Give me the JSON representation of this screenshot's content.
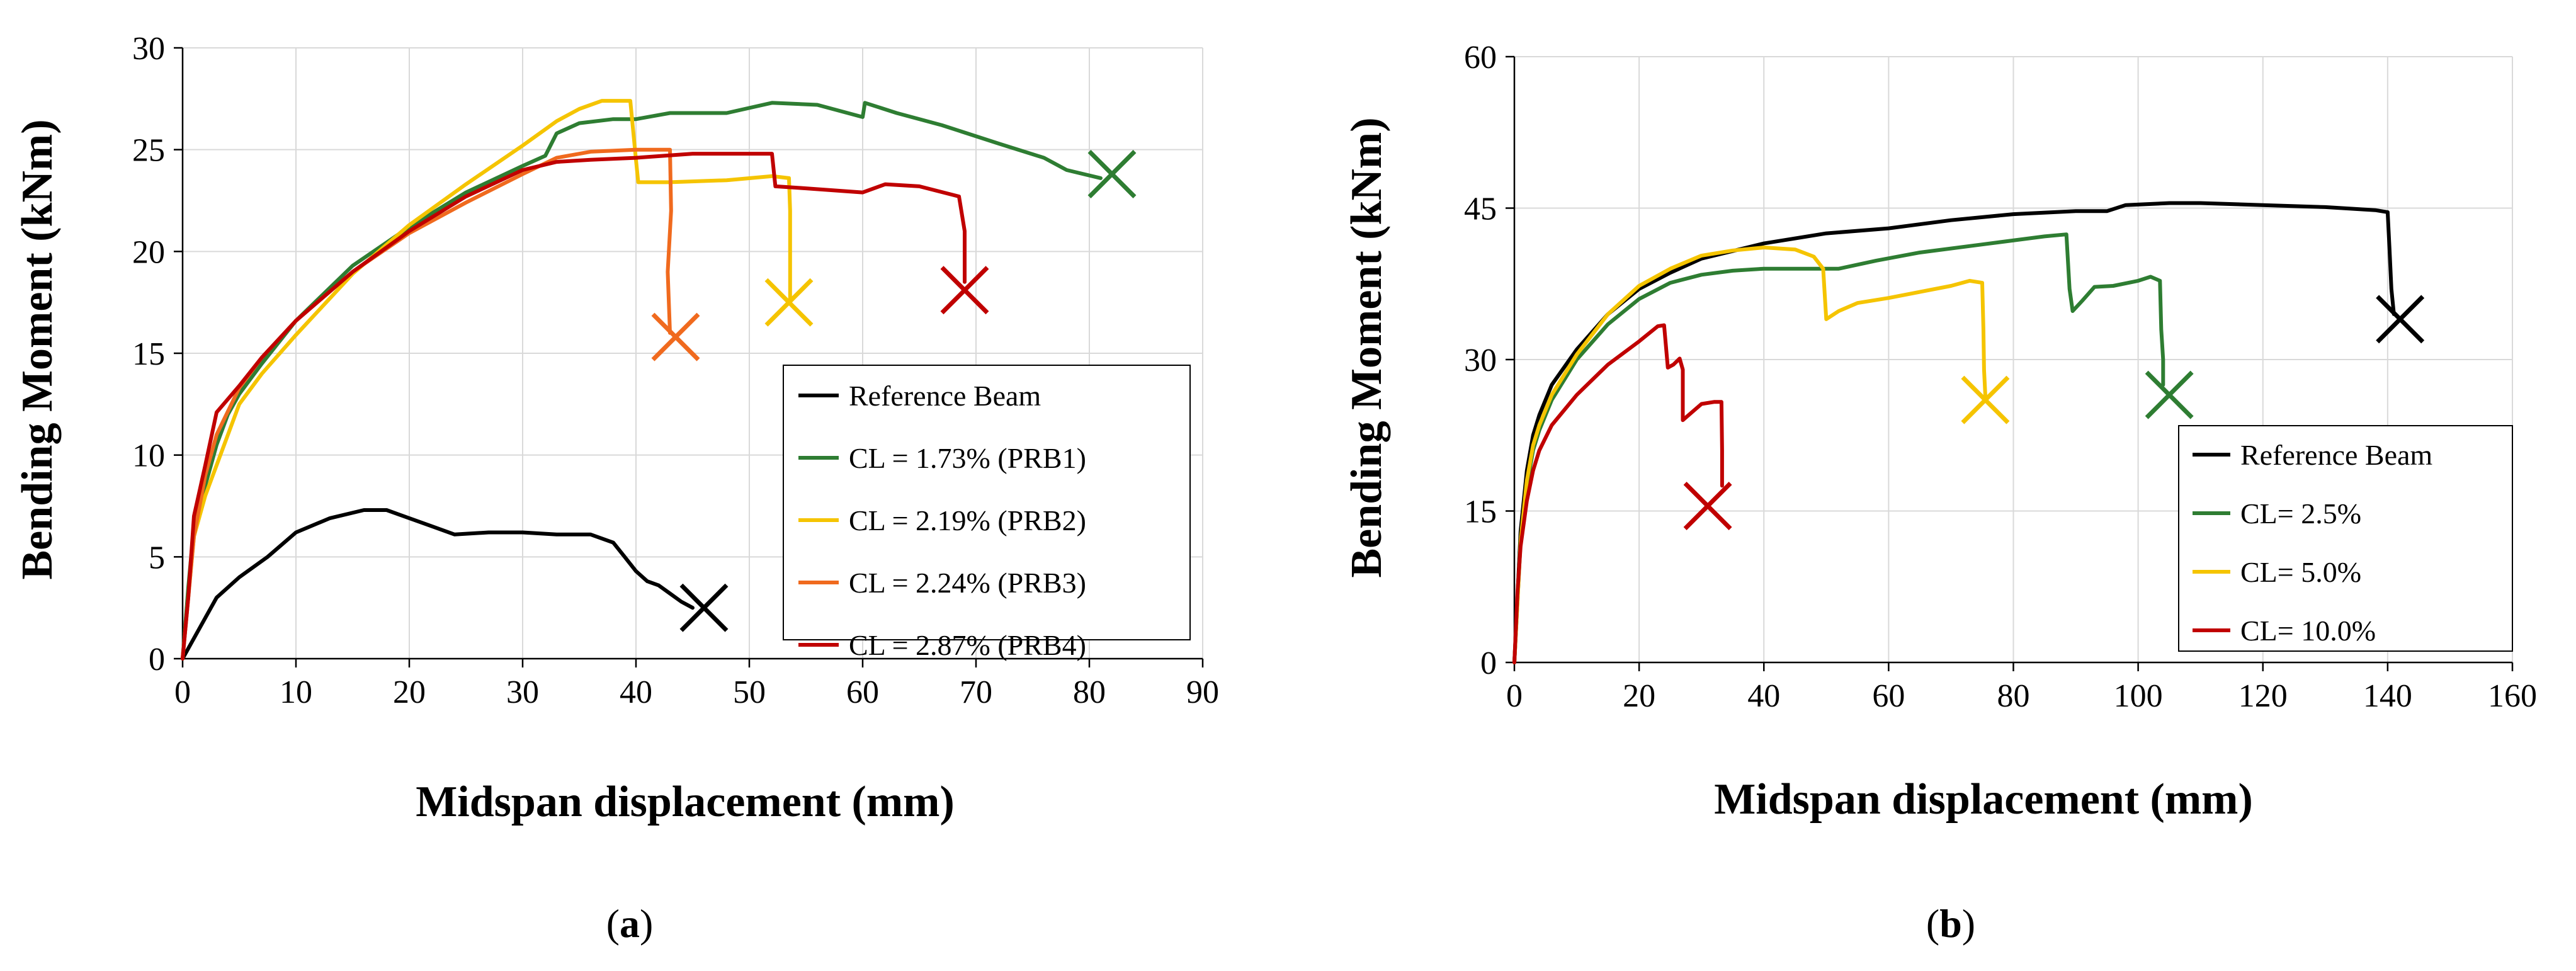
{
  "chart_data": [
    {
      "type": "line",
      "panel_caption": "(a)",
      "caption_open": "(",
      "caption_letter": "a",
      "caption_close": ")",
      "xlabel": "Midspan displacement (mm)",
      "ylabel": "Bending Moment (kNm)",
      "xlim": [
        0,
        90
      ],
      "ylim": [
        0,
        30
      ],
      "xticks": [
        0,
        10,
        20,
        30,
        40,
        50,
        60,
        70,
        80,
        90
      ],
      "yticks": [
        0,
        5,
        10,
        15,
        20,
        25,
        30
      ],
      "grid": true,
      "legend_position": "bottom-right",
      "series": [
        {
          "name": "Reference Beam",
          "color": "#000000",
          "points": [
            [
              0,
              0
            ],
            [
              2,
              2
            ],
            [
              3,
              3
            ],
            [
              5,
              4
            ],
            [
              7.5,
              5
            ],
            [
              10,
              6.2
            ],
            [
              13,
              6.9
            ],
            [
              16,
              7.3
            ],
            [
              18,
              7.3
            ],
            [
              20,
              6.9
            ],
            [
              22,
              6.5
            ],
            [
              24,
              6.1
            ],
            [
              27,
              6.2
            ],
            [
              30,
              6.2
            ],
            [
              33,
              6.1
            ],
            [
              36,
              6.1
            ],
            [
              38,
              5.7
            ],
            [
              39,
              5
            ],
            [
              40,
              4.3
            ],
            [
              41,
              3.8
            ],
            [
              42,
              3.6
            ],
            [
              43,
              3.2
            ],
            [
              44,
              2.8
            ],
            [
              45,
              2.5
            ]
          ],
          "failure_marker": [
            46,
            2.5
          ]
        },
        {
          "name": "CL = 1.73% (PRB1)",
          "color": "#2e7d32",
          "points": [
            [
              0,
              0
            ],
            [
              0.5,
              3.5
            ],
            [
              1,
              6.5
            ],
            [
              2,
              8.5
            ],
            [
              3,
              10.5
            ],
            [
              4,
              12
            ],
            [
              5,
              13
            ],
            [
              7,
              14.5
            ],
            [
              10,
              16.6
            ],
            [
              15,
              19.3
            ],
            [
              20,
              21.2
            ],
            [
              25,
              22.9
            ],
            [
              30,
              24.2
            ],
            [
              32,
              24.7
            ],
            [
              33,
              25.8
            ],
            [
              35,
              26.3
            ],
            [
              38,
              26.5
            ],
            [
              40,
              26.5
            ],
            [
              43,
              26.8
            ],
            [
              48,
              26.8
            ],
            [
              52,
              27.3
            ],
            [
              56,
              27.2
            ],
            [
              60,
              26.6
            ],
            [
              60.2,
              27.3
            ],
            [
              63,
              26.8
            ],
            [
              67,
              26.2
            ],
            [
              72,
              25.3
            ],
            [
              76,
              24.6
            ],
            [
              78,
              24
            ],
            [
              81,
              23.6
            ]
          ],
          "failure_marker": [
            82,
            23.8
          ]
        },
        {
          "name": "CL = 2.19% (PRB2)",
          "color": "#f5c400",
          "points": [
            [
              0,
              0
            ],
            [
              0.5,
              3
            ],
            [
              1,
              6
            ],
            [
              2,
              8
            ],
            [
              3,
              9.5
            ],
            [
              5,
              12.5
            ],
            [
              7,
              14
            ],
            [
              10,
              15.9
            ],
            [
              15,
              18.9
            ],
            [
              20,
              21.3
            ],
            [
              25,
              23.3
            ],
            [
              30,
              25.2
            ],
            [
              33,
              26.4
            ],
            [
              35,
              27
            ],
            [
              37,
              27.4
            ],
            [
              39.5,
              27.4
            ],
            [
              40,
              24.5
            ],
            [
              40.2,
              23.4
            ],
            [
              43,
              23.4
            ],
            [
              48,
              23.5
            ],
            [
              52,
              23.7
            ],
            [
              53.5,
              23.6
            ],
            [
              53.6,
              22
            ],
            [
              53.6,
              17.5
            ]
          ],
          "failure_marker": [
            53.5,
            17.5
          ]
        },
        {
          "name": "CL = 2.24% (PRB3)",
          "color": "#f06a1e",
          "points": [
            [
              0,
              0
            ],
            [
              0.5,
              3
            ],
            [
              1,
              6
            ],
            [
              2,
              9
            ],
            [
              3,
              11
            ],
            [
              5,
              13.3
            ],
            [
              7,
              14.8
            ],
            [
              10,
              16.6
            ],
            [
              15,
              19
            ],
            [
              20,
              20.9
            ],
            [
              25,
              22.4
            ],
            [
              30,
              23.8
            ],
            [
              33,
              24.6
            ],
            [
              36,
              24.9
            ],
            [
              40,
              25
            ],
            [
              43,
              25
            ],
            [
              43.1,
              22
            ],
            [
              42.8,
              19
            ],
            [
              43,
              16
            ]
          ],
          "failure_marker": [
            43.5,
            15.8
          ]
        },
        {
          "name": "CL = 2.87% (PRB4)",
          "color": "#c00000",
          "points": [
            [
              0,
              0
            ],
            [
              0.5,
              3
            ],
            [
              1,
              7
            ],
            [
              2,
              9.5
            ],
            [
              3,
              12.1
            ],
            [
              5,
              13.4
            ],
            [
              7,
              14.8
            ],
            [
              10,
              16.6
            ],
            [
              15,
              19
            ],
            [
              20,
              21
            ],
            [
              25,
              22.7
            ],
            [
              30,
              24
            ],
            [
              33,
              24.4
            ],
            [
              36,
              24.5
            ],
            [
              40,
              24.6
            ],
            [
              45,
              24.8
            ],
            [
              48,
              24.8
            ],
            [
              52,
              24.8
            ],
            [
              52.3,
              23.2
            ],
            [
              55,
              23.1
            ],
            [
              60,
              22.9
            ],
            [
              62,
              23.3
            ],
            [
              65,
              23.2
            ],
            [
              68.5,
              22.7
            ],
            [
              69,
              21
            ],
            [
              69,
              18.5
            ]
          ],
          "failure_marker": [
            69,
            18.1
          ]
        }
      ]
    },
    {
      "type": "line",
      "panel_caption": "(b)",
      "caption_open": "(",
      "caption_letter": "b",
      "caption_close": ")",
      "xlabel": "Midspan displacement (mm)",
      "ylabel": "Bending Moment (kNm)",
      "xlim": [
        0,
        160
      ],
      "ylim": [
        0,
        60
      ],
      "xticks": [
        0,
        20,
        40,
        60,
        80,
        100,
        120,
        140,
        160
      ],
      "yticks": [
        0,
        15,
        30,
        45,
        60
      ],
      "grid": true,
      "legend_position": "bottom-right",
      "series": [
        {
          "name": "Reference Beam",
          "color": "#000000",
          "points": [
            [
              0,
              0
            ],
            [
              1,
              13
            ],
            [
              2,
              19
            ],
            [
              3,
              22.5
            ],
            [
              4,
              24.5
            ],
            [
              6,
              27.5
            ],
            [
              10,
              31
            ],
            [
              15,
              34.5
            ],
            [
              20,
              37
            ],
            [
              25,
              38.6
            ],
            [
              30,
              40
            ],
            [
              40,
              41.5
            ],
            [
              50,
              42.5
            ],
            [
              60,
              43
            ],
            [
              70,
              43.8
            ],
            [
              80,
              44.4
            ],
            [
              90,
              44.7
            ],
            [
              95,
              44.7
            ],
            [
              98,
              45.3
            ],
            [
              105,
              45.5
            ],
            [
              110,
              45.5
            ],
            [
              120,
              45.3
            ],
            [
              130,
              45.1
            ],
            [
              138,
              44.8
            ],
            [
              140,
              44.6
            ],
            [
              140.3,
              41
            ],
            [
              140.6,
              37
            ],
            [
              141,
              34.5
            ]
          ],
          "failure_marker": [
            142,
            34
          ]
        },
        {
          "name": "CL= 2.5%",
          "color": "#2e7d32",
          "points": [
            [
              0,
              0
            ],
            [
              1,
              12
            ],
            [
              2,
              17.5
            ],
            [
              3,
              21
            ],
            [
              4,
              23
            ],
            [
              6,
              26
            ],
            [
              10,
              30
            ],
            [
              15,
              33.5
            ],
            [
              20,
              36
            ],
            [
              25,
              37.6
            ],
            [
              30,
              38.4
            ],
            [
              35,
              38.8
            ],
            [
              40,
              39
            ],
            [
              45,
              39
            ],
            [
              52,
              39
            ],
            [
              58,
              39.8
            ],
            [
              65,
              40.6
            ],
            [
              75,
              41.4
            ],
            [
              85,
              42.2
            ],
            [
              88.5,
              42.4
            ],
            [
              89,
              37
            ],
            [
              89.5,
              34.8
            ],
            [
              91,
              35.8
            ],
            [
              93,
              37.2
            ],
            [
              96,
              37.3
            ],
            [
              100,
              37.8
            ],
            [
              102,
              38.2
            ],
            [
              103.5,
              37.8
            ],
            [
              103.7,
              33
            ],
            [
              104,
              30
            ],
            [
              104,
              27.5
            ]
          ],
          "failure_marker": [
            105,
            26.5
          ]
        },
        {
          "name": "CL= 5.0%",
          "color": "#f5c400",
          "points": [
            [
              0,
              0
            ],
            [
              1,
              12
            ],
            [
              2,
              18
            ],
            [
              3,
              21.5
            ],
            [
              4,
              23.5
            ],
            [
              6,
              26.5
            ],
            [
              10,
              30.5
            ],
            [
              15,
              34.5
            ],
            [
              20,
              37.3
            ],
            [
              25,
              39
            ],
            [
              30,
              40.3
            ],
            [
              35,
              40.8
            ],
            [
              40,
              41.1
            ],
            [
              45,
              40.9
            ],
            [
              48,
              40.2
            ],
            [
              49.5,
              39
            ],
            [
              50,
              34
            ],
            [
              52,
              34.8
            ],
            [
              55,
              35.6
            ],
            [
              60,
              36.1
            ],
            [
              65,
              36.7
            ],
            [
              70,
              37.3
            ],
            [
              73,
              37.8
            ],
            [
              75,
              37.6
            ],
            [
              75.2,
              33
            ],
            [
              75.3,
              29
            ],
            [
              75.5,
              26.5
            ]
          ],
          "failure_marker": [
            75.5,
            26
          ]
        },
        {
          "name": "CL= 10.0%",
          "color": "#c00000",
          "points": [
            [
              0,
              0
            ],
            [
              0.5,
              7
            ],
            [
              1,
              11.5
            ],
            [
              2,
              16
            ],
            [
              3,
              19
            ],
            [
              4,
              21
            ],
            [
              6,
              23.5
            ],
            [
              10,
              26.5
            ],
            [
              15,
              29.5
            ],
            [
              20,
              31.8
            ],
            [
              23,
              33.3
            ],
            [
              24,
              33.4
            ],
            [
              24.6,
              29.2
            ],
            [
              25.5,
              29.5
            ],
            [
              26.5,
              30.1
            ],
            [
              27,
              29
            ],
            [
              27,
              24
            ],
            [
              28.5,
              24.8
            ],
            [
              30,
              25.6
            ],
            [
              32,
              25.8
            ],
            [
              33.2,
              25.8
            ],
            [
              33.3,
              21
            ],
            [
              33.3,
              17.5
            ]
          ],
          "failure_marker": [
            31,
            15.5
          ]
        }
      ]
    }
  ]
}
